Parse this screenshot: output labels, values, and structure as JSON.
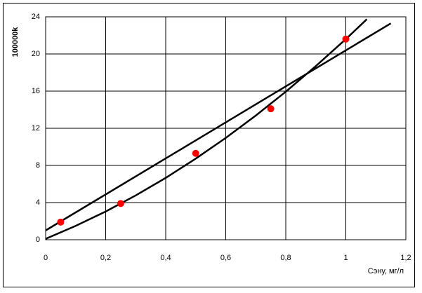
{
  "chart_data": {
    "type": "scatter",
    "xlabel": "Сэну, мг/л",
    "ylabel": "100000k",
    "x": [
      0.05,
      0.25,
      0.5,
      0.75,
      1.0
    ],
    "values": [
      1.9,
      3.9,
      9.3,
      14.1,
      21.6
    ],
    "color": "#ff0000",
    "lines": [
      {
        "color": "#000000",
        "x": [
          0,
          1.15
        ],
        "values": [
          1.0,
          23.3
        ]
      },
      {
        "color": "#000000",
        "x": [
          0,
          0.1,
          0.2,
          0.3,
          0.4,
          0.5,
          0.6,
          0.7,
          0.8,
          0.9,
          1.0,
          1.07
        ],
        "values": [
          0.1,
          1.49,
          3.04,
          4.77,
          6.66,
          8.73,
          10.96,
          13.37,
          15.94,
          18.69,
          21.6,
          23.74
        ]
      }
    ],
    "xlim": [
      0,
      1.2
    ],
    "xticks": [
      0,
      {
        "value": 0.2,
        "label": "0,2"
      },
      {
        "value": 0.4,
        "label": "0,4"
      },
      {
        "value": 0.6,
        "label": "0,6"
      },
      {
        "value": 0.8,
        "label": "0,8"
      },
      1,
      {
        "value": 1.2,
        "label": "1,2"
      }
    ],
    "ylim": [
      0,
      24
    ],
    "yticks": [
      0,
      4,
      8,
      12,
      16,
      20,
      24
    ],
    "grid": true
  }
}
